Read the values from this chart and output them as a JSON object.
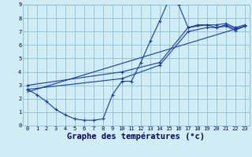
{
  "line1_x": [
    0,
    1,
    2,
    3,
    4,
    5,
    6,
    7,
    8,
    9,
    10,
    11,
    12,
    13,
    14,
    15,
    16,
    17,
    18,
    19,
    20,
    21,
    22,
    23
  ],
  "line1_y": [
    2.7,
    2.3,
    1.8,
    1.2,
    0.8,
    0.5,
    0.4,
    0.4,
    0.5,
    2.3,
    3.3,
    3.3,
    4.7,
    6.3,
    7.8,
    9.4,
    9.0,
    7.3,
    7.5,
    7.5,
    7.3,
    7.4,
    7.1,
    7.4
  ],
  "line2_x": [
    0,
    10,
    14,
    17,
    19,
    20,
    21,
    22,
    23
  ],
  "line2_y": [
    2.7,
    3.5,
    4.5,
    7.0,
    7.3,
    7.3,
    7.5,
    7.2,
    7.4
  ],
  "line3_x": [
    0,
    10,
    14,
    17,
    19,
    20,
    21,
    22,
    23
  ],
  "line3_y": [
    3.0,
    4.0,
    4.7,
    7.3,
    7.5,
    7.5,
    7.6,
    7.3,
    7.5
  ],
  "line4_x": [
    0,
    23
  ],
  "line4_y": [
    2.5,
    7.4
  ],
  "xlabel": "Graphe des températures (°c)",
  "bg_color": "#d0edf5",
  "line_color": "#1a3aaa",
  "grid_color": "#90bcd0",
  "xlim": [
    -0.5,
    23.5
  ],
  "ylim": [
    0,
    9
  ],
  "xticks": [
    0,
    1,
    2,
    3,
    4,
    5,
    6,
    7,
    8,
    9,
    10,
    11,
    12,
    13,
    14,
    15,
    16,
    17,
    18,
    19,
    20,
    21,
    22,
    23
  ],
  "yticks": [
    0,
    1,
    2,
    3,
    4,
    5,
    6,
    7,
    8,
    9
  ],
  "tick_fontsize": 5.0,
  "xlabel_fontsize": 7.5
}
